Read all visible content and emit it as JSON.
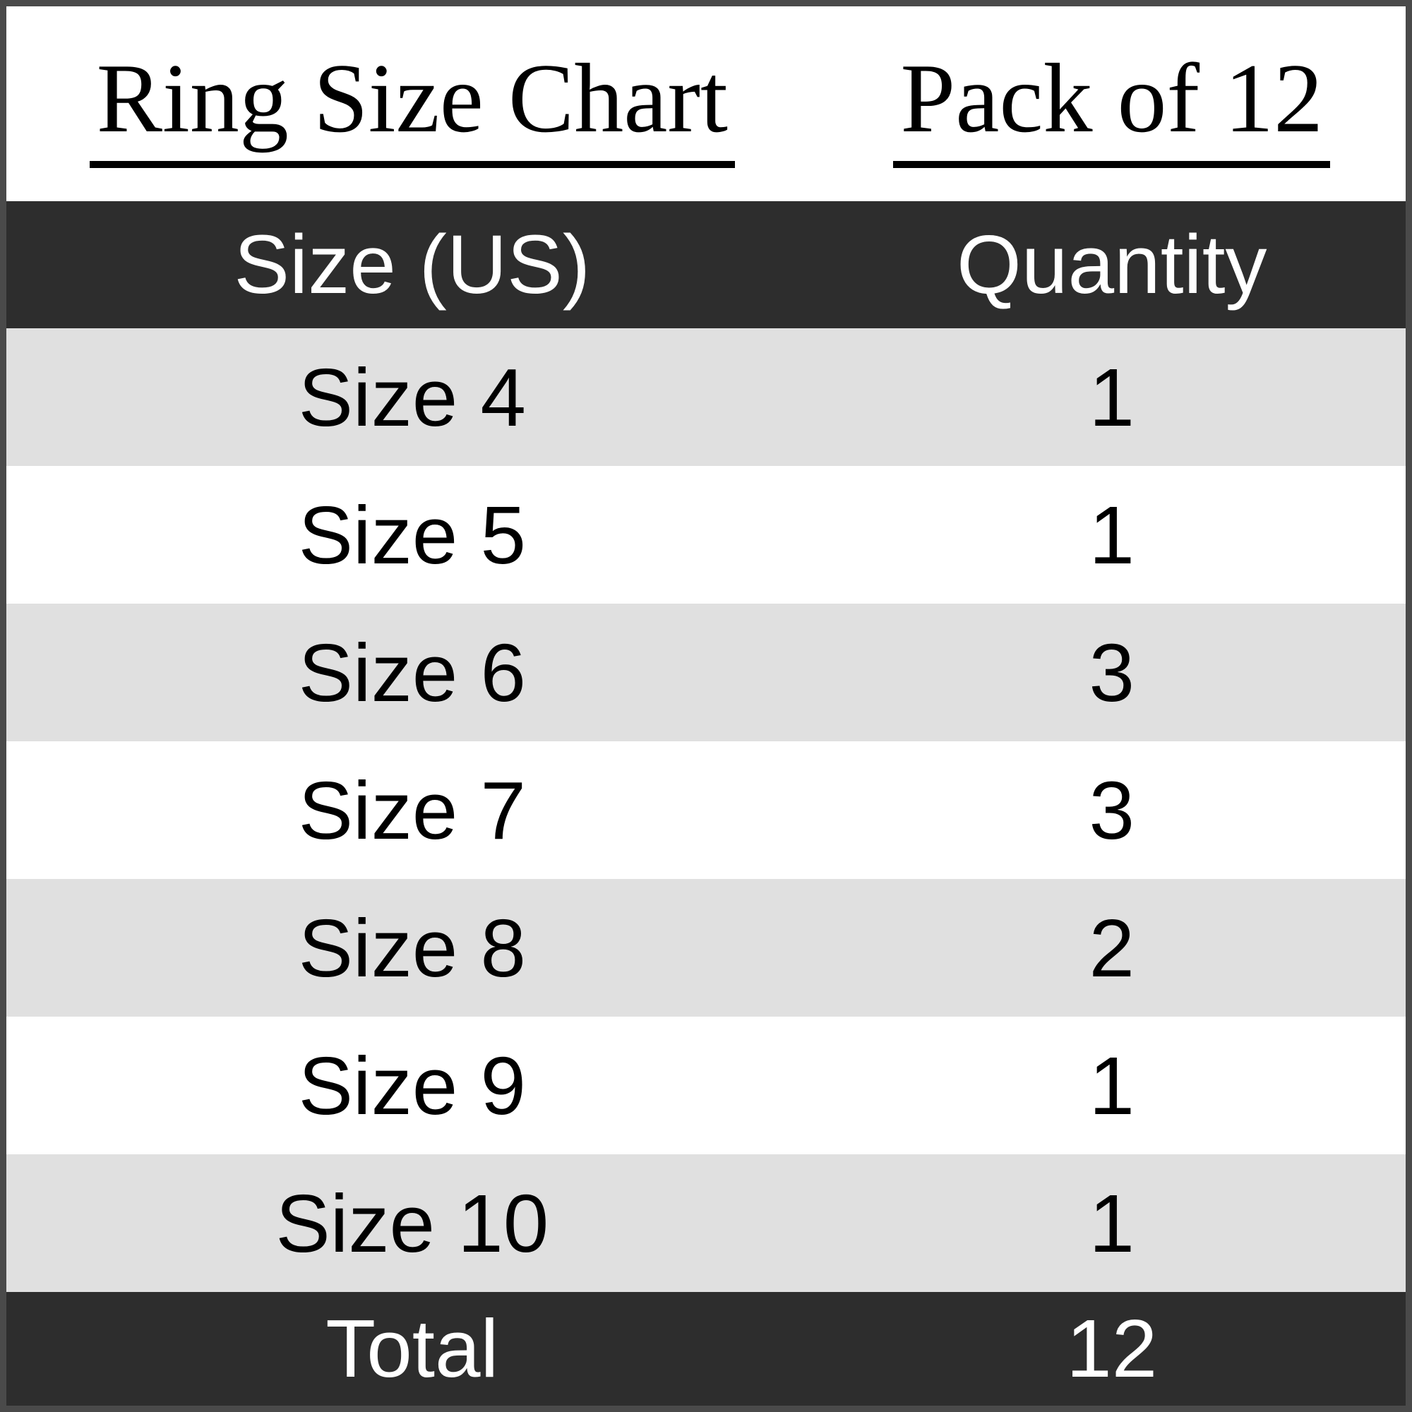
{
  "titles": {
    "left": "Ring Size Chart",
    "right": "Pack of 12"
  },
  "table": {
    "columns": [
      {
        "label": "Size (US)"
      },
      {
        "label": "Quantity"
      }
    ],
    "rows": [
      {
        "size": "Size 4",
        "quantity": "1",
        "shade": "gray"
      },
      {
        "size": "Size 5",
        "quantity": "1",
        "shade": "white"
      },
      {
        "size": "Size 6",
        "quantity": "3",
        "shade": "gray"
      },
      {
        "size": "Size 7",
        "quantity": "3",
        "shade": "white"
      },
      {
        "size": "Size 8",
        "quantity": "2",
        "shade": "gray"
      },
      {
        "size": "Size 9",
        "quantity": "1",
        "shade": "white"
      },
      {
        "size": "Size 10",
        "quantity": "1",
        "shade": "gray"
      }
    ],
    "total": {
      "label": "Total",
      "value": "12"
    }
  },
  "colors": {
    "dark_band": "#2d2d2d",
    "row_gray": "#e0e0e0",
    "row_white": "#ffffff",
    "frame_border": "#4a4a4a",
    "text_dark": "#000000",
    "text_light": "#ffffff"
  },
  "chart_data": {
    "type": "table",
    "title": "Ring Size Chart",
    "subtitle": "Pack of 12",
    "columns": [
      "Size (US)",
      "Quantity"
    ],
    "categories": [
      "Size 4",
      "Size 5",
      "Size 6",
      "Size 7",
      "Size 8",
      "Size 9",
      "Size 10"
    ],
    "values": [
      1,
      1,
      3,
      3,
      2,
      1,
      1
    ],
    "total_label": "Total",
    "total": 12,
    "layout_hints": {
      "header_background": "#2d2d2d",
      "alternating_rows": [
        "#e0e0e0",
        "#ffffff"
      ],
      "footer_background": "#2d2d2d",
      "title_font": "serif-underlined",
      "body_font": "sans-serif"
    }
  }
}
